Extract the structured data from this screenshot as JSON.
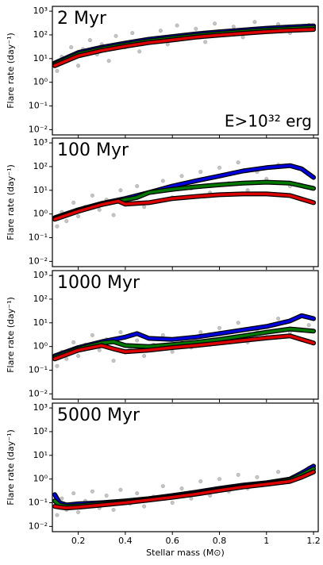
{
  "chart_data": [
    {
      "type": "scatter",
      "title": "2 Myr",
      "annotation": "E>10³² erg",
      "ylabel": "Flare rate (day⁻¹)",
      "log_y": true,
      "xlim": [
        0.09,
        1.22
      ],
      "xticks": [
        0.2,
        0.4,
        0.6,
        0.8,
        1.0,
        1.2
      ],
      "xtick_labels": false,
      "ylim": [
        0.006,
        1600
      ],
      "yticks": [
        {
          "value": 0.01,
          "label": "10⁻²"
        },
        {
          "value": 0.1,
          "label": "10⁻¹"
        },
        {
          "value": 1,
          "label": "10⁰"
        },
        {
          "value": 10,
          "label": "10¹"
        },
        {
          "value": 100,
          "label": "10²"
        },
        {
          "value": 1000,
          "label": "10³"
        }
      ],
      "series": [
        {
          "style": "points",
          "color": "#555555",
          "x": [
            0.11,
            0.13,
            0.15,
            0.17,
            0.2,
            0.22,
            0.25,
            0.28,
            0.3,
            0.33,
            0.36,
            0.4,
            0.43,
            0.46,
            0.5,
            0.55,
            0.58,
            0.62,
            0.66,
            0.7,
            0.74,
            0.78,
            0.82,
            0.86,
            0.9,
            0.95,
            1.0,
            1.05,
            1.1,
            1.18
          ],
          "values": [
            3,
            12,
            8,
            30,
            5,
            25,
            60,
            15,
            40,
            8,
            90,
            30,
            120,
            20,
            60,
            150,
            40,
            250,
            70,
            180,
            50,
            300,
            100,
            220,
            80,
            350,
            150,
            280,
            120,
            260
          ]
        },
        {
          "style": "line",
          "color": "#0000dd",
          "x": [
            0.1,
            0.2,
            0.3,
            0.4,
            0.5,
            0.6,
            0.7,
            0.8,
            0.9,
            1.0,
            1.1,
            1.2
          ],
          "values": [
            6.5,
            18,
            30,
            45,
            65,
            85,
            110,
            135,
            160,
            190,
            215,
            240
          ]
        },
        {
          "style": "line",
          "color": "#007700",
          "x": [
            0.1,
            0.2,
            0.3,
            0.4,
            0.5,
            0.6,
            0.7,
            0.8,
            0.9,
            1.0,
            1.1,
            1.2
          ],
          "values": [
            5.8,
            15.5,
            26,
            39,
            56,
            73,
            95,
            116,
            138,
            163,
            185,
            205
          ]
        },
        {
          "style": "line",
          "color": "#dd0000",
          "x": [
            0.1,
            0.2,
            0.3,
            0.4,
            0.5,
            0.6,
            0.7,
            0.8,
            0.9,
            1.0,
            1.1,
            1.2
          ],
          "values": [
            5,
            13,
            22,
            33,
            47,
            61,
            80,
            98,
            116,
            137,
            155,
            170
          ]
        }
      ]
    },
    {
      "type": "scatter",
      "title": "100 Myr",
      "ylabel": "Flare rate (day⁻¹)",
      "log_y": true,
      "xlim": [
        0.09,
        1.22
      ],
      "xticks": [
        0.2,
        0.4,
        0.6,
        0.8,
        1.0,
        1.2
      ],
      "xtick_labels": false,
      "ylim": [
        0.006,
        1600
      ],
      "yticks": [
        {
          "value": 0.01,
          "label": "10⁻²"
        },
        {
          "value": 0.1,
          "label": "10⁻¹"
        },
        {
          "value": 1,
          "label": "10⁰"
        },
        {
          "value": 10,
          "label": "10¹"
        },
        {
          "value": 100,
          "label": "10²"
        },
        {
          "value": 1000,
          "label": "10³"
        }
      ],
      "series": [
        {
          "style": "points",
          "color": "#555555",
          "x": [
            0.11,
            0.13,
            0.15,
            0.18,
            0.2,
            0.23,
            0.26,
            0.29,
            0.32,
            0.35,
            0.38,
            0.42,
            0.45,
            0.48,
            0.52,
            0.56,
            0.6,
            0.64,
            0.68,
            0.72,
            0.76,
            0.8,
            0.84,
            0.88,
            0.92,
            0.96,
            1.0,
            1.05,
            1.1,
            1.18
          ],
          "values": [
            0.3,
            1.2,
            0.5,
            3,
            0.8,
            2,
            6,
            1.5,
            4,
            0.9,
            10,
            3,
            15,
            2,
            8,
            25,
            5,
            40,
            12,
            60,
            8,
            90,
            20,
            150,
            10,
            60,
            30,
            120,
            15,
            50
          ]
        },
        {
          "style": "line",
          "color": "#0000dd",
          "x": [
            0.1,
            0.2,
            0.3,
            0.4,
            0.5,
            0.6,
            0.7,
            0.8,
            0.9,
            1.0,
            1.1,
            1.15,
            1.2
          ],
          "values": [
            0.7,
            1.5,
            2.8,
            4.5,
            8,
            15,
            25,
            40,
            65,
            90,
            110,
            80,
            35
          ]
        },
        {
          "style": "line",
          "color": "#007700",
          "x": [
            0.1,
            0.2,
            0.3,
            0.4,
            0.45,
            0.5,
            0.6,
            0.7,
            0.8,
            0.9,
            1.0,
            1.1,
            1.2
          ],
          "values": [
            0.65,
            1.4,
            2.6,
            4,
            5,
            8,
            11,
            14,
            17,
            20,
            22,
            20,
            12
          ]
        },
        {
          "style": "line",
          "color": "#dd0000",
          "x": [
            0.1,
            0.2,
            0.3,
            0.37,
            0.4,
            0.45,
            0.5,
            0.6,
            0.7,
            0.8,
            0.9,
            1.0,
            1.1,
            1.2
          ],
          "values": [
            0.6,
            1.3,
            2.5,
            3.5,
            2.6,
            2.8,
            3,
            4.5,
            5.5,
            6.5,
            7,
            7,
            6,
            3
          ]
        }
      ]
    },
    {
      "type": "scatter",
      "title": "1000 Myr",
      "ylabel": "Flare rate (day⁻¹)",
      "log_y": true,
      "xlim": [
        0.09,
        1.22
      ],
      "xticks": [
        0.2,
        0.4,
        0.6,
        0.8,
        1.0,
        1.2
      ],
      "xtick_labels": false,
      "ylim": [
        0.006,
        1600
      ],
      "yticks": [
        {
          "value": 0.01,
          "label": "10⁻²"
        },
        {
          "value": 0.1,
          "label": "10⁻¹"
        },
        {
          "value": 1,
          "label": "10⁰"
        },
        {
          "value": 10,
          "label": "10¹"
        },
        {
          "value": 100,
          "label": "10²"
        },
        {
          "value": 1000,
          "label": "10³"
        }
      ],
      "series": [
        {
          "style": "points",
          "color": "#555555",
          "x": [
            0.11,
            0.13,
            0.15,
            0.18,
            0.2,
            0.23,
            0.26,
            0.29,
            0.32,
            0.35,
            0.38,
            0.42,
            0.45,
            0.48,
            0.52,
            0.56,
            0.6,
            0.64,
            0.68,
            0.72,
            0.76,
            0.8,
            0.84,
            0.88,
            0.92,
            0.96,
            1.0,
            1.05,
            1.1,
            1.18
          ],
          "values": [
            0.15,
            0.6,
            0.3,
            1.5,
            0.4,
            1.2,
            3,
            0.7,
            2,
            0.25,
            4,
            0.8,
            1.8,
            0.4,
            1.2,
            3,
            0.6,
            2,
            0.9,
            4,
            1.2,
            6,
            2,
            10,
            1.5,
            5,
            2.5,
            15,
            4,
            8
          ]
        },
        {
          "style": "line",
          "color": "#0000dd",
          "x": [
            0.1,
            0.2,
            0.3,
            0.4,
            0.45,
            0.5,
            0.6,
            0.7,
            0.8,
            0.9,
            1.0,
            1.1,
            1.15,
            1.2
          ],
          "values": [
            0.4,
            0.9,
            1.6,
            2.5,
            3.5,
            2.2,
            2,
            2.5,
            3.5,
            5,
            7,
            12,
            20,
            15
          ]
        },
        {
          "style": "line",
          "color": "#007700",
          "x": [
            0.1,
            0.2,
            0.3,
            0.35,
            0.4,
            0.5,
            0.6,
            0.7,
            0.8,
            0.9,
            1.0,
            1.1,
            1.2
          ],
          "values": [
            0.35,
            0.8,
            1.4,
            1.6,
            1.1,
            1,
            1.2,
            1.5,
            2,
            2.8,
            4,
            5.5,
            4.5
          ]
        },
        {
          "style": "line",
          "color": "#dd0000",
          "x": [
            0.1,
            0.2,
            0.3,
            0.35,
            0.4,
            0.5,
            0.6,
            0.7,
            0.8,
            0.9,
            1.0,
            1.1,
            1.2
          ],
          "values": [
            0.3,
            0.7,
            1.1,
            0.8,
            0.6,
            0.7,
            0.9,
            1.1,
            1.4,
            1.8,
            2.3,
            2.8,
            1.4
          ]
        }
      ]
    },
    {
      "type": "scatter",
      "title": "5000 Myr",
      "ylabel": "Flare rate (day⁻¹)",
      "xlabel": "Stellar mass (M⊙)",
      "log_y": true,
      "xlim": [
        0.09,
        1.22
      ],
      "xticks": [
        0.2,
        0.4,
        0.6,
        0.8,
        1.0,
        1.2
      ],
      "xtick_labels": true,
      "ylim": [
        0.006,
        1600
      ],
      "yticks": [
        {
          "value": 0.01,
          "label": "10⁻²"
        },
        {
          "value": 0.1,
          "label": "10⁻¹"
        },
        {
          "value": 1,
          "label": "10⁰"
        },
        {
          "value": 10,
          "label": "10¹"
        },
        {
          "value": 100,
          "label": "10²"
        },
        {
          "value": 1000,
          "label": "10³"
        }
      ],
      "series": [
        {
          "style": "points",
          "color": "#555555",
          "x": [
            0.11,
            0.13,
            0.15,
            0.18,
            0.2,
            0.23,
            0.26,
            0.29,
            0.32,
            0.35,
            0.38,
            0.42,
            0.45,
            0.48,
            0.52,
            0.56,
            0.6,
            0.64,
            0.68,
            0.72,
            0.76,
            0.8,
            0.84,
            0.88,
            0.92,
            0.96,
            1.0,
            1.05,
            1.1,
            1.18
          ],
          "values": [
            0.03,
            0.15,
            0.05,
            0.25,
            0.04,
            0.12,
            0.3,
            0.06,
            0.2,
            0.05,
            0.35,
            0.09,
            0.25,
            0.07,
            0.18,
            0.5,
            0.1,
            0.4,
            0.15,
            0.8,
            0.2,
            1.0,
            0.3,
            1.5,
            0.4,
            1.2,
            0.6,
            2,
            0.8,
            3
          ]
        },
        {
          "style": "line",
          "color": "#0000dd",
          "x": [
            0.1,
            0.12,
            0.15,
            0.2,
            0.3,
            0.4,
            0.5,
            0.6,
            0.7,
            0.8,
            0.9,
            1.0,
            1.1,
            1.15,
            1.2
          ],
          "values": [
            0.22,
            0.1,
            0.08,
            0.09,
            0.1,
            0.12,
            0.15,
            0.2,
            0.28,
            0.4,
            0.55,
            0.7,
            1.0,
            1.8,
            3.5
          ]
        },
        {
          "style": "line",
          "color": "#007700",
          "x": [
            0.1,
            0.12,
            0.15,
            0.2,
            0.3,
            0.4,
            0.5,
            0.6,
            0.7,
            0.8,
            0.9,
            1.0,
            1.1,
            1.15,
            1.2
          ],
          "values": [
            0.12,
            0.08,
            0.07,
            0.075,
            0.09,
            0.11,
            0.14,
            0.18,
            0.25,
            0.36,
            0.5,
            0.64,
            0.9,
            1.5,
            2.7
          ]
        },
        {
          "style": "line",
          "color": "#dd0000",
          "x": [
            0.1,
            0.12,
            0.15,
            0.2,
            0.3,
            0.4,
            0.5,
            0.6,
            0.7,
            0.8,
            0.9,
            1.0,
            1.1,
            1.15,
            1.2
          ],
          "values": [
            0.07,
            0.065,
            0.06,
            0.065,
            0.08,
            0.1,
            0.13,
            0.17,
            0.23,
            0.33,
            0.46,
            0.6,
            0.8,
            1.2,
            2
          ]
        }
      ]
    }
  ]
}
